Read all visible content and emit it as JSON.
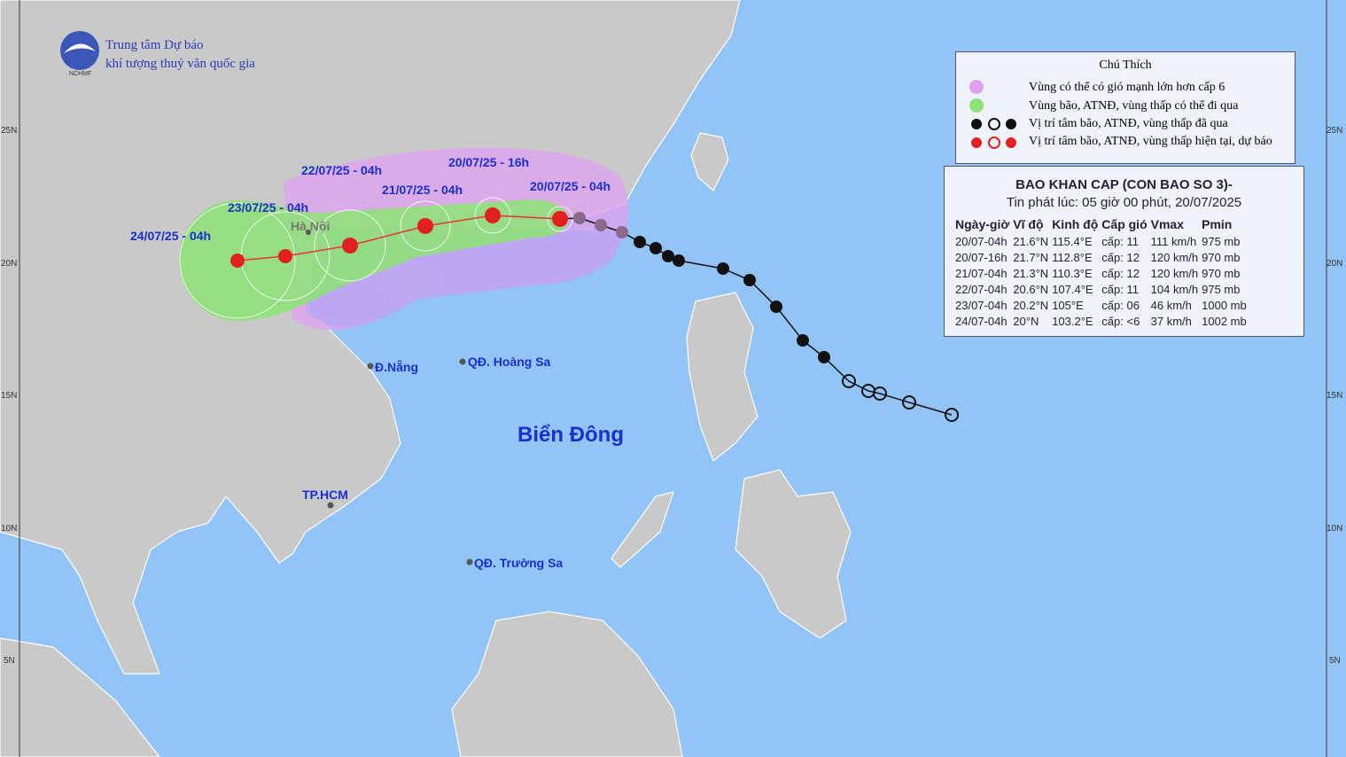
{
  "header": {
    "org_line1": "Trung tâm Dự báo",
    "org_line2": "khí tượng thuỷ văn quốc gia",
    "logo_text": "NCHMF"
  },
  "legend": {
    "title": "Chú Thích",
    "items": [
      "Vùng có thể có gió mạnh lớn hơn cấp 6",
      "Vùng bão, ATNĐ, vùng thấp có thể đi qua",
      "Vị trí tâm bão, ATNĐ, vùng thấp đã qua",
      "Vị trí tâm bão, ATNĐ, vùng thấp hiện tại, dự báo"
    ]
  },
  "bulletin": {
    "title": "BAO KHAN CAP (CON BAO SO 3)-",
    "issued": "Tin phát lúc: 05 giờ 00 phút, 20/07/2025",
    "columns": [
      "Ngày-giờ",
      "Vĩ độ",
      "Kinh độ",
      "Cấp gió",
      "Vmax",
      "Pmin"
    ],
    "rows": [
      [
        "20/07-04h",
        "21.6°N",
        "115.4°E",
        "cấp: 11",
        "111 km/h",
        "975 mb"
      ],
      [
        "20/07-16h",
        "21.7°N",
        "112.8°E",
        "cấp: 12",
        "120 km/h",
        "970 mb"
      ],
      [
        "21/07-04h",
        "21.3°N",
        "110.3°E",
        "cấp: 12",
        "120 km/h",
        "970 mb"
      ],
      [
        "22/07-04h",
        "20.6°N",
        "107.4°E",
        "cấp: 11",
        "104 km/h",
        "975 mb"
      ],
      [
        "23/07-04h",
        "20.2°N",
        "105°E",
        "cấp: 06",
        "46 km/h",
        "1000 mb"
      ],
      [
        "24/07-04h",
        "20°N",
        "103.2°E",
        "cấp: <6",
        "37 km/h",
        "1002 mb"
      ]
    ]
  },
  "map_labels": {
    "t1": "20/07/25 - 16h",
    "t2": "22/07/25 - 04h",
    "t3": "21/07/25 - 04h",
    "t4": "20/07/25 - 04h",
    "t5": "23/07/25 - 04h",
    "t6": "24/07/25 - 04h",
    "hanoi": "Hà Nội",
    "danang": "Đ.Nẵng",
    "hoangsa": "QĐ. Hoàng Sa",
    "biendong": "Biển Đông",
    "hcm": "TP.HCM",
    "truongsa": "QĐ. Trường Sa"
  },
  "lat_ticks": [
    "25N",
    "20N",
    "15N",
    "10N",
    "5N"
  ]
}
